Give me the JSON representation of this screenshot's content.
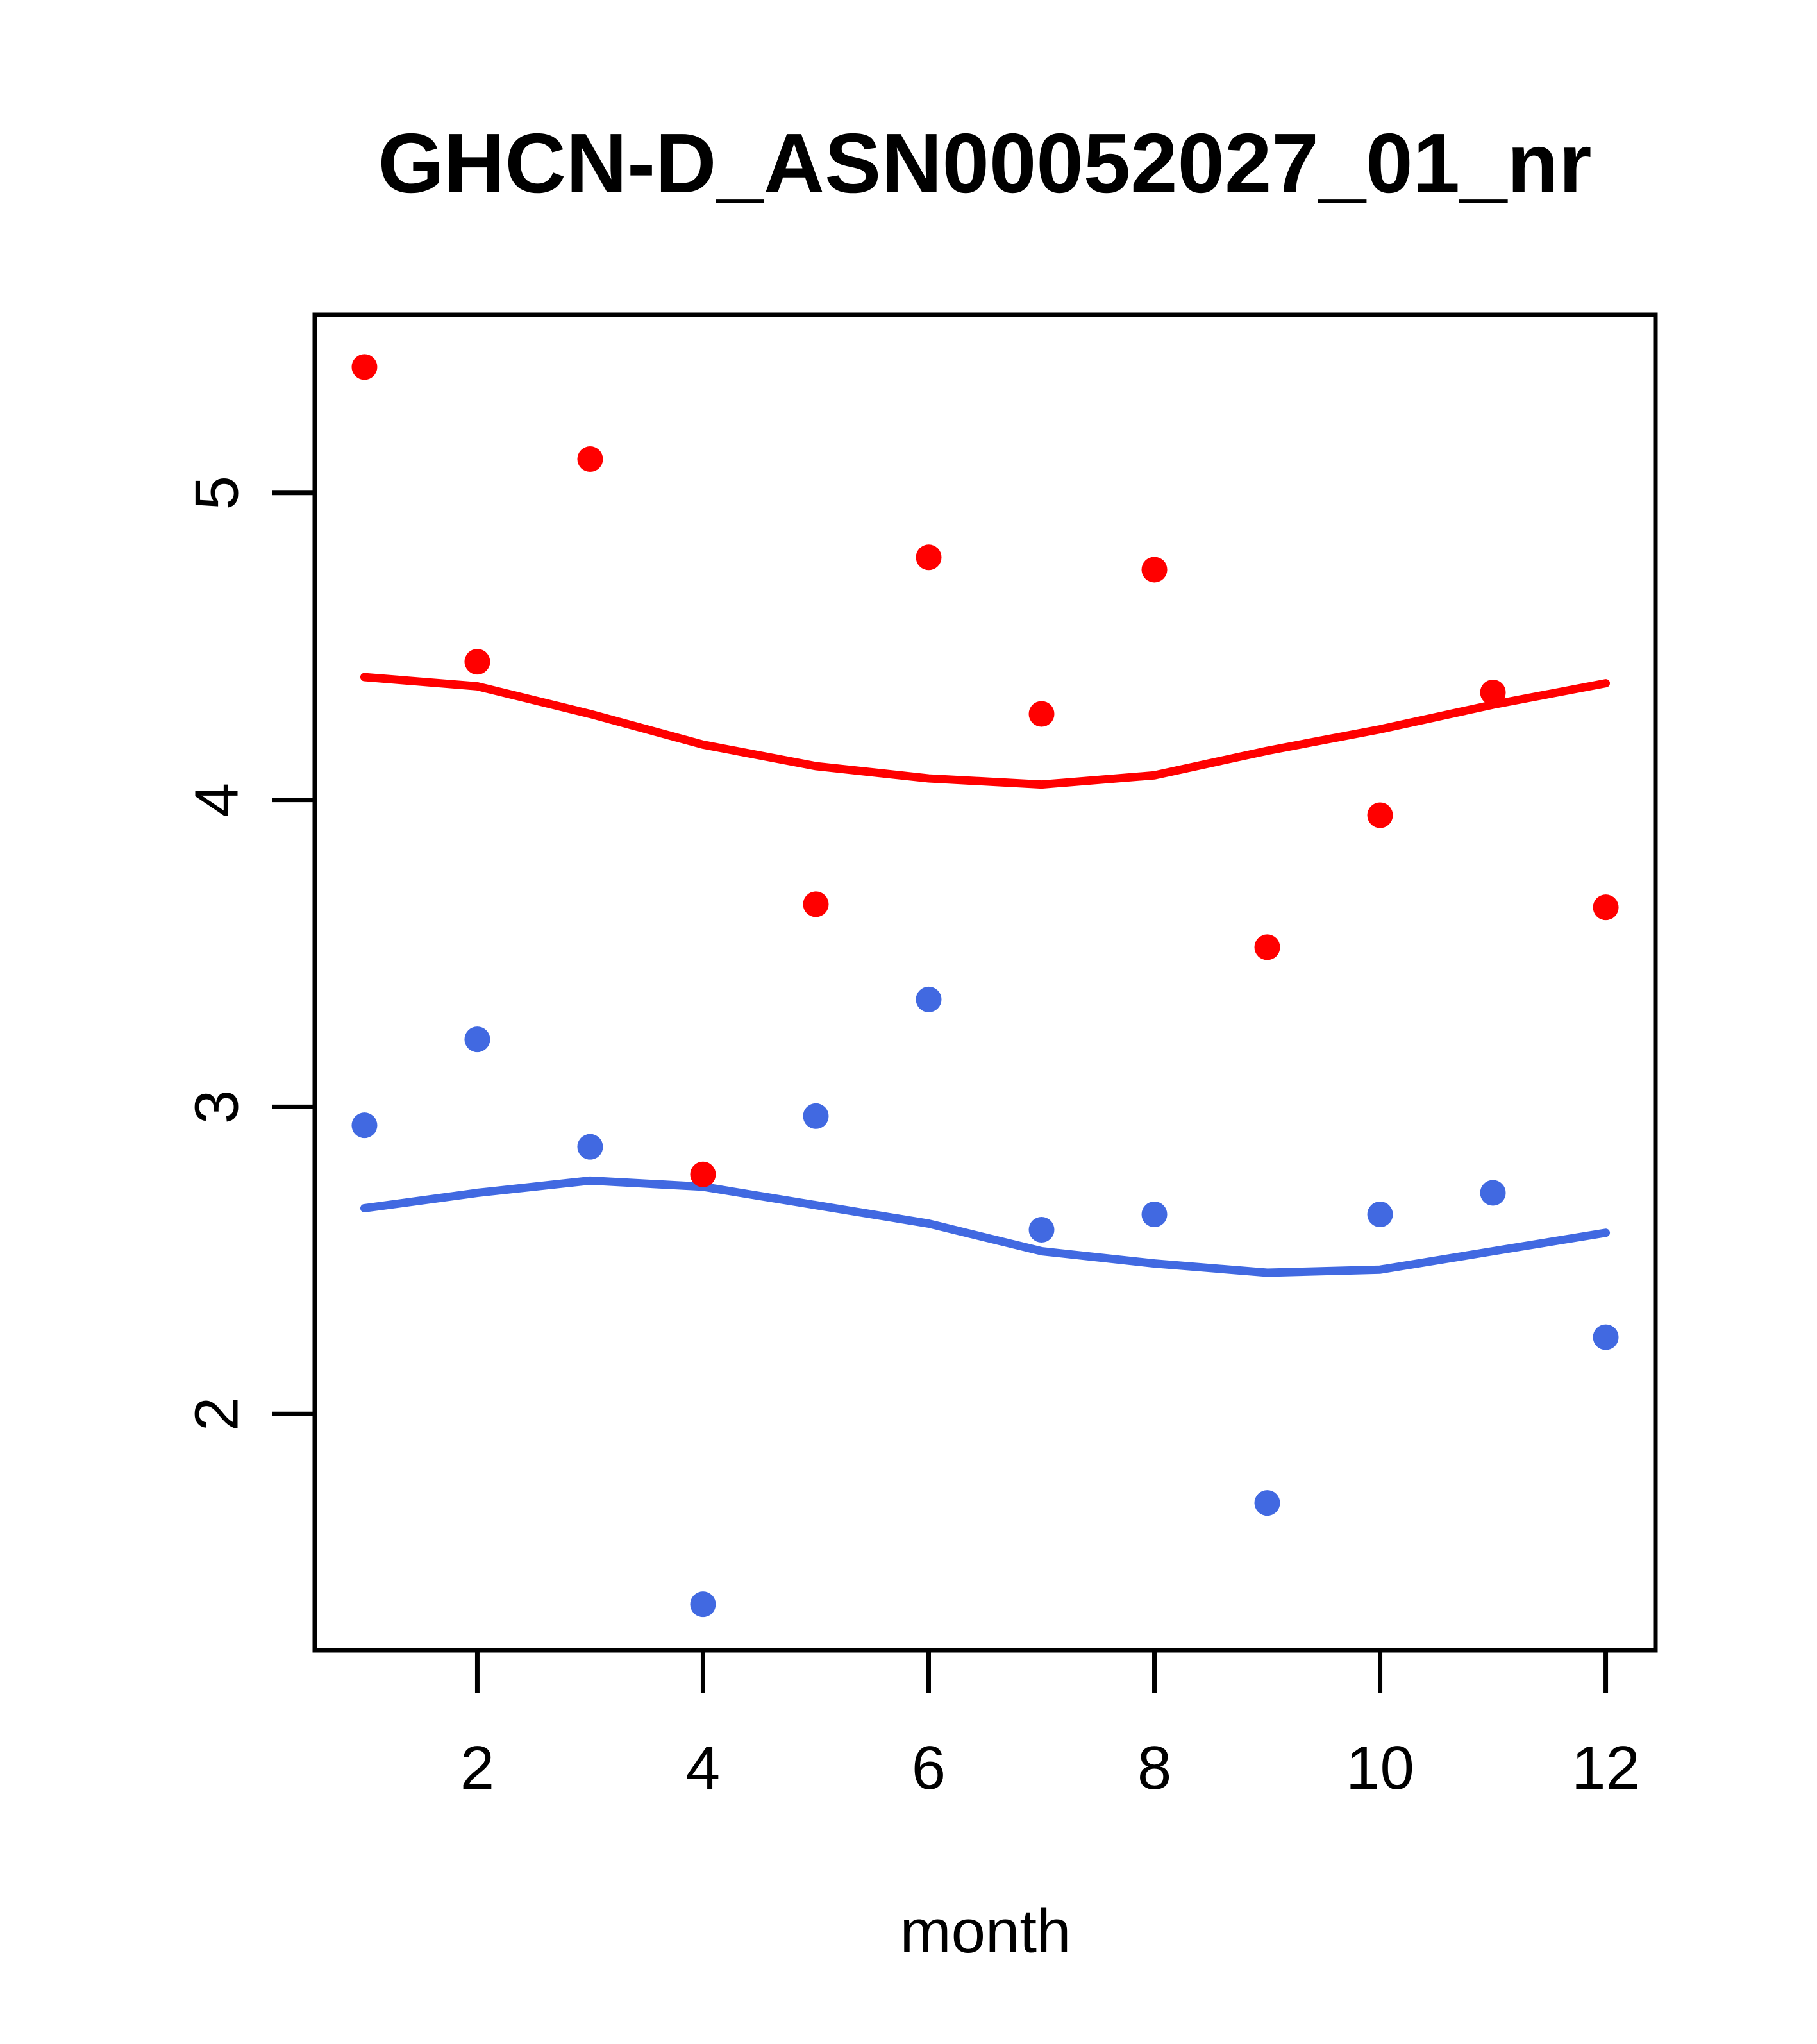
{
  "figure": {
    "title": "GHCN-D_ASN00052027_01_nr",
    "x_axis_label": "month"
  },
  "colors": {
    "red_series": "#ff0000",
    "blue_series": "#4169e1",
    "axis": "#000000",
    "background": "#ffffff"
  },
  "chart_data": {
    "type": "scatter",
    "title": "GHCN-D_ASN00052027_01_nr",
    "xlabel": "month",
    "ylabel": "",
    "grid": false,
    "legend": "none",
    "xlim": [
      0.56,
      12.44
    ],
    "ylim": [
      1.23,
      5.58
    ],
    "x_ticks": [
      2,
      4,
      6,
      8,
      10,
      12
    ],
    "y_ticks": [
      2,
      3,
      4,
      5
    ],
    "x": [
      1,
      2,
      3,
      4,
      5,
      6,
      7,
      8,
      9,
      10,
      11,
      12
    ],
    "series": [
      {
        "name": "red points",
        "kind": "scatter",
        "color": "#ff0000",
        "values": [
          5.41,
          4.45,
          5.11,
          2.78,
          3.66,
          4.79,
          4.28,
          4.75,
          3.52,
          3.95,
          4.35,
          3.65
        ]
      },
      {
        "name": "blue points",
        "kind": "scatter",
        "color": "#4169e1",
        "values": [
          2.94,
          3.22,
          2.87,
          1.38,
          2.97,
          3.35,
          2.6,
          2.65,
          1.71,
          2.65,
          2.72,
          2.25
        ]
      },
      {
        "name": "red smooth line",
        "kind": "line",
        "color": "#ff0000",
        "values": [
          4.4,
          4.37,
          4.28,
          4.18,
          4.11,
          4.07,
          4.05,
          4.08,
          4.16,
          4.23,
          4.31,
          4.38
        ]
      },
      {
        "name": "blue smooth line",
        "kind": "line",
        "color": "#4169e1",
        "values": [
          2.67,
          2.72,
          2.76,
          2.74,
          2.68,
          2.62,
          2.53,
          2.49,
          2.46,
          2.47,
          2.53,
          2.59
        ]
      }
    ]
  }
}
